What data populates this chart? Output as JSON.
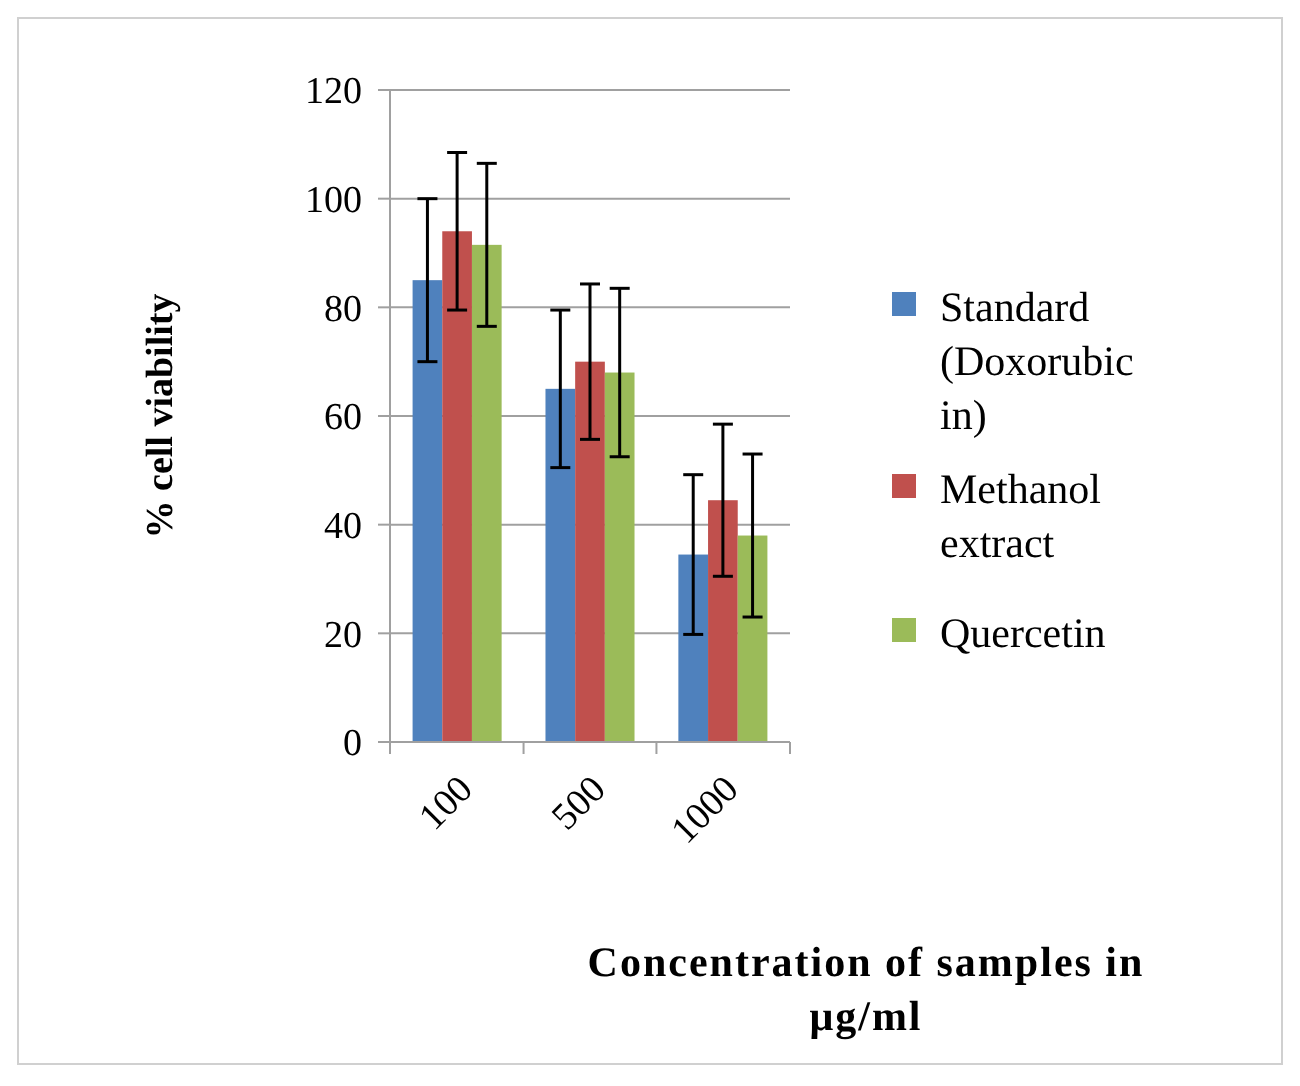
{
  "chart_data": {
    "type": "bar",
    "xlabel": "Concentration of samples in μg/ml",
    "ylabel": "% cell viability",
    "categories": [
      "100",
      "500",
      "1000"
    ],
    "series": [
      {
        "name": "Standard (Doxorubicin)",
        "color": "#4f81bd",
        "values": [
          85,
          65,
          34.5
        ],
        "errors": [
          15,
          14.5,
          14.7
        ]
      },
      {
        "name": "Methanol extract",
        "color": "#c0504d",
        "values": [
          94,
          70,
          44.5
        ],
        "errors": [
          14.5,
          14.3,
          14
        ]
      },
      {
        "name": "Quercetin",
        "color": "#9bbb59",
        "values": [
          91.5,
          68,
          38
        ],
        "errors": [
          15,
          15.5,
          15
        ]
      }
    ],
    "ylim": [
      0,
      120
    ],
    "yticks": [
      0,
      20,
      40,
      60,
      80,
      100,
      120
    ],
    "grid": "y",
    "legend": "right"
  }
}
